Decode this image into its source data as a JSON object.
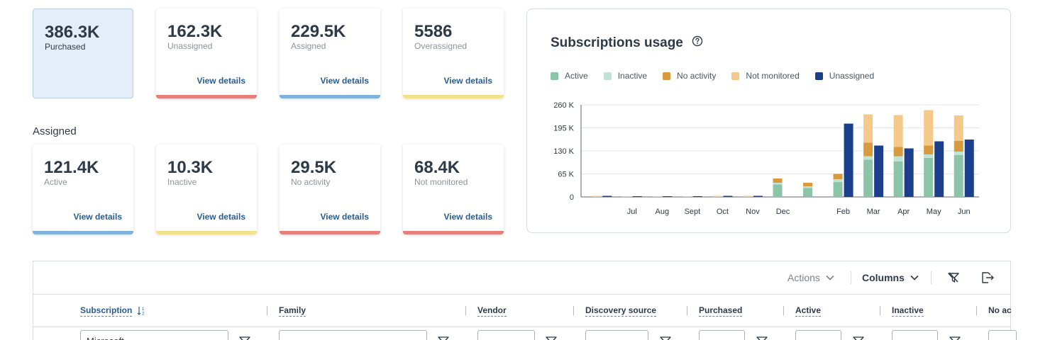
{
  "summary_cards": [
    {
      "value": "386.3K",
      "label": "Purchased",
      "link": "",
      "bar_color": ""
    },
    {
      "value": "162.3K",
      "label": "Unassigned",
      "link": "View details",
      "bar_color": "#e57f7b"
    },
    {
      "value": "229.5K",
      "label": "Assigned",
      "link": "View details",
      "bar_color": "#7fb3dc"
    },
    {
      "value": "5586",
      "label": "Overassigned",
      "link": "View details",
      "bar_color": "#f2e28a"
    }
  ],
  "assigned_section": {
    "title": "Assigned",
    "cards": [
      {
        "value": "121.4K",
        "label": "Active",
        "link": "View details",
        "bar_color": "#7fb3dc"
      },
      {
        "value": "10.3K",
        "label": "Inactive",
        "link": "View details",
        "bar_color": "#f2e28a"
      },
      {
        "value": "29.5K",
        "label": "No activity",
        "link": "View details",
        "bar_color": "#e57f7b"
      },
      {
        "value": "68.4K",
        "label": "Not monitored",
        "link": "View details",
        "bar_color": "#e57f7b"
      }
    ]
  },
  "chart_panel": {
    "title": "Subscriptions usage",
    "help_icon": "question-circle-icon"
  },
  "chart_data": {
    "type": "bar",
    "title": "Subscriptions usage",
    "stacked_plus_side_bar": true,
    "categories": [
      "",
      "Jul",
      "Aug",
      "Sept",
      "Oct",
      "Nov",
      "Dec",
      "",
      "Feb",
      "Mar",
      "Apr",
      "May",
      "Jun"
    ],
    "series": [
      {
        "name": "Active",
        "color": "#8cc4a8",
        "values": [
          0,
          0,
          0,
          0,
          0,
          0,
          35,
          25,
          42,
          105,
          100,
          110,
          118
        ]
      },
      {
        "name": "Inactive",
        "color": "#bfe3d4",
        "values": [
          0,
          0,
          0,
          0,
          0,
          0,
          5,
          5,
          8,
          10,
          15,
          10,
          10
        ]
      },
      {
        "name": "No activity",
        "color": "#d89a3d",
        "values": [
          0,
          0,
          0,
          0,
          0,
          0,
          12,
          10,
          15,
          38,
          26,
          25,
          30
        ]
      },
      {
        "name": "Not monitored",
        "color": "#f4c98a",
        "values": [
          3,
          2,
          2,
          2,
          3,
          3,
          0,
          0,
          0,
          80,
          90,
          100,
          72
        ]
      },
      {
        "name": "Unassigned",
        "color": "#1b3f8b",
        "values": [
          3,
          2,
          2,
          2,
          3,
          3,
          0,
          0,
          207,
          145,
          137,
          157,
          162
        ]
      }
    ],
    "y_ticks": [
      "0",
      "65 K",
      "130 K",
      "195 K",
      "260 K"
    ],
    "ylim": [
      0,
      260
    ],
    "legend_position": "top",
    "grid": true
  },
  "table": {
    "toolbar": {
      "actions_label": "Actions",
      "columns_label": "Columns",
      "clear_filter_icon": "filter-clear-icon",
      "export_icon": "export-icon"
    },
    "columns": [
      {
        "label": "Subscription",
        "sorted": true
      },
      {
        "label": "Family"
      },
      {
        "label": "Vendor"
      },
      {
        "label": "Discovery source"
      },
      {
        "label": "Purchased"
      },
      {
        "label": "Active"
      },
      {
        "label": "Inactive"
      },
      {
        "label": "No ac"
      }
    ],
    "filters": [
      {
        "value": "Microsoft"
      },
      {
        "value": ""
      },
      {
        "value": ""
      },
      {
        "value": ""
      },
      {
        "value": ""
      },
      {
        "value": ""
      },
      {
        "value": ""
      },
      {
        "value": ""
      }
    ]
  }
}
